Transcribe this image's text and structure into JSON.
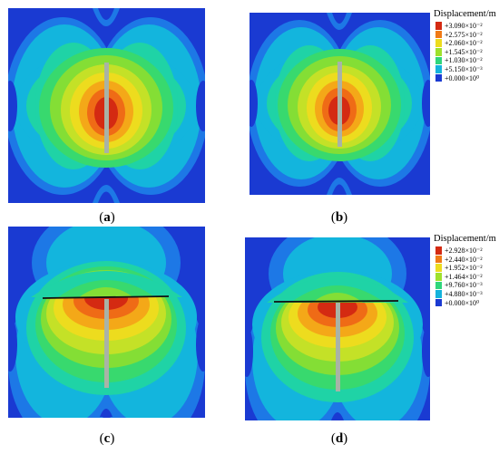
{
  "panels": [
    {
      "id": "a",
      "caption_open": "(",
      "caption_letter": "a",
      "caption_close": ")"
    },
    {
      "id": "b",
      "caption_open": "(",
      "caption_letter": "b",
      "caption_close": ")"
    },
    {
      "id": "c",
      "caption_open": "(",
      "caption_letter": "c",
      "caption_close": ")"
    },
    {
      "id": "d",
      "caption_open": "(",
      "caption_letter": "d",
      "caption_close": ")"
    }
  ],
  "legends": [
    {
      "title": "Displacement/m",
      "entries": [
        {
          "label": "+3.090×10⁻²",
          "color": "#d42a12"
        },
        {
          "label": "+2.575×10⁻²",
          "color": "#f07a16"
        },
        {
          "label": "+2.060×10⁻²",
          "color": "#eddc1e"
        },
        {
          "label": "+1.545×10⁻²",
          "color": "#9fe12c"
        },
        {
          "label": "+1.030×10⁻²",
          "color": "#2fd67c"
        },
        {
          "label": "+5.150×10⁻³",
          "color": "#14b3dc"
        },
        {
          "label": "+0.000×10⁰",
          "color": "#1a3ad2"
        }
      ]
    },
    {
      "title": "Displacement/m",
      "entries": [
        {
          "label": "+2.928×10⁻²",
          "color": "#d42a12"
        },
        {
          "label": "+2.440×10⁻²",
          "color": "#f07a16"
        },
        {
          "label": "+1.952×10⁻²",
          "color": "#eddc1e"
        },
        {
          "label": "+1.464×10⁻²",
          "color": "#9fe12c"
        },
        {
          "label": "+9.760×10⁻³",
          "color": "#2fd67c"
        },
        {
          "label": "+4.880×10⁻³",
          "color": "#14b3dc"
        },
        {
          "label": "+0.000×10⁰",
          "color": "#1a3ad2"
        }
      ]
    }
  ],
  "contour_colors": [
    "#1a3ad2",
    "#1d78e6",
    "#13b5dd",
    "#1fd3a6",
    "#38d96e",
    "#84de35",
    "#c4e127",
    "#eddc1e",
    "#f4a818",
    "#ef6b16",
    "#d42a12"
  ],
  "pile_color": "#a9b3a6",
  "cap_color": "#111111"
}
